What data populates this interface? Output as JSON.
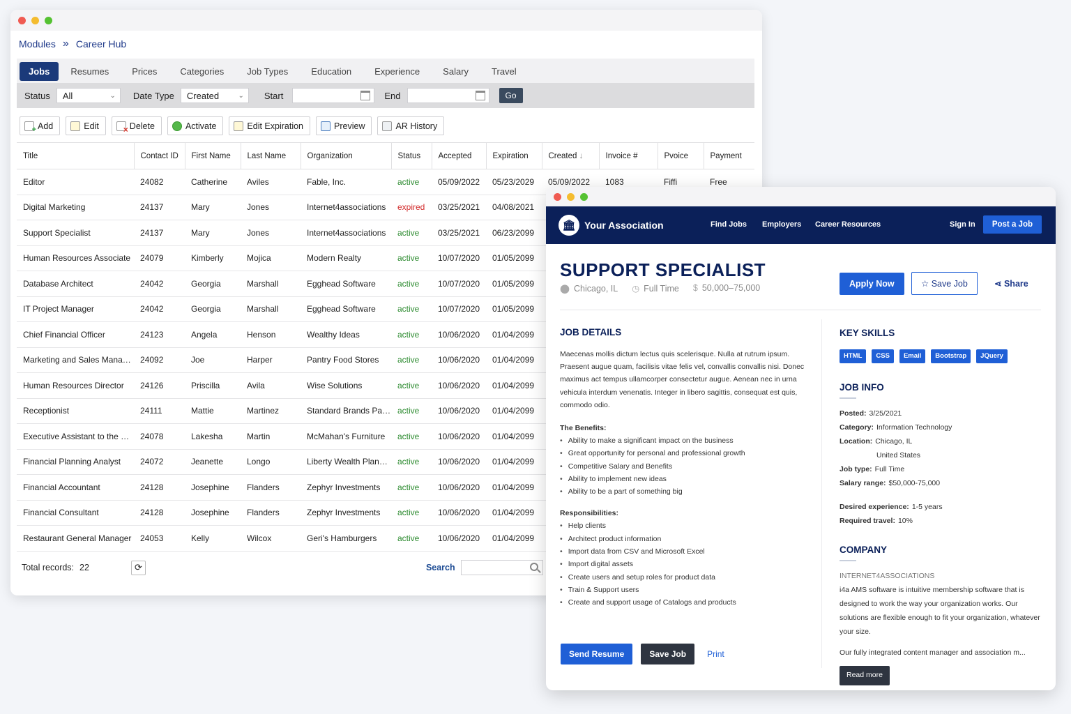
{
  "admin": {
    "breadcrumb": {
      "root": "Modules",
      "current": "Career Hub"
    },
    "tabs": [
      "Jobs",
      "Resumes",
      "Prices",
      "Categories",
      "Job Types",
      "Education",
      "Experience",
      "Salary",
      "Travel"
    ],
    "filters": {
      "status_label": "Status",
      "status_value": "All",
      "date_type_label": "Date Type",
      "date_type_value": "Created",
      "start_label": "Start",
      "end_label": "End",
      "go": "Go"
    },
    "toolbar": [
      "Add",
      "Edit",
      "Delete",
      "Activate",
      "Edit Expiration",
      "Preview",
      "AR History"
    ],
    "columns": [
      "Title",
      "Contact ID",
      "First Name",
      "Last Name",
      "Organization",
      "Status",
      "Accepted",
      "Expiration",
      "Created",
      "Invoice #",
      "Pvoice",
      "Payment"
    ],
    "rows": [
      [
        "Editor",
        "24082",
        "Catherine",
        "Aviles",
        "Fable, Inc.",
        "active",
        "05/09/2022",
        "05/23/2029",
        "05/09/2022",
        "1083",
        "Fiffi",
        "Free"
      ],
      [
        "Digital Marketing",
        "24137",
        "Mary",
        "Jones",
        "Internet4associations",
        "expired",
        "03/25/2021",
        "04/08/2021",
        "",
        "",
        "",
        ""
      ],
      [
        "Support Specialist",
        "24137",
        "Mary",
        "Jones",
        "Internet4associations",
        "active",
        "03/25/2021",
        "06/23/2099",
        "",
        "",
        "",
        ""
      ],
      [
        "Human Resources Associate",
        "24079",
        "Kimberly",
        "Mojica",
        "Modern Realty",
        "active",
        "10/07/2020",
        "01/05/2099",
        "",
        "",
        "",
        ""
      ],
      [
        "Database Architect",
        "24042",
        "Georgia",
        "Marshall",
        "Egghead Software",
        "active",
        "10/07/2020",
        "01/05/2099",
        "",
        "",
        "",
        ""
      ],
      [
        "IT Project Manager",
        "24042",
        "Georgia",
        "Marshall",
        "Egghead Software",
        "active",
        "10/07/2020",
        "01/05/2099",
        "",
        "",
        "",
        ""
      ],
      [
        "Chief Financial Officer",
        "24123",
        "Angela",
        "Henson",
        "Wealthy Ideas",
        "active",
        "10/06/2020",
        "01/04/2099",
        "",
        "",
        "",
        ""
      ],
      [
        "Marketing and Sales Manager",
        "24092",
        "Joe",
        "Harper",
        "Pantry Food Stores",
        "active",
        "10/06/2020",
        "01/04/2099",
        "",
        "",
        "",
        ""
      ],
      [
        "Human Resources Director",
        "24126",
        "Priscilla",
        "Avila",
        "Wise Solutions",
        "active",
        "10/06/2020",
        "01/04/2099",
        "",
        "",
        "",
        ""
      ],
      [
        "Receptionist",
        "24111",
        "Mattie",
        "Martinez",
        "Standard Brands Paint ...",
        "active",
        "10/06/2020",
        "01/04/2099",
        "",
        "",
        "",
        ""
      ],
      [
        "Executive Assistant to the Pre...",
        "24078",
        "Lakesha",
        "Martin",
        "McMahan's Furniture",
        "active",
        "10/06/2020",
        "01/04/2099",
        "",
        "",
        "",
        ""
      ],
      [
        "Financial Planning Analyst",
        "24072",
        "Jeanette",
        "Longo",
        "Liberty Wealth Planners",
        "active",
        "10/06/2020",
        "01/04/2099",
        "",
        "",
        "",
        ""
      ],
      [
        "Financial Accountant",
        "24128",
        "Josephine",
        "Flanders",
        "Zephyr Investments",
        "active",
        "10/06/2020",
        "01/04/2099",
        "",
        "",
        "",
        ""
      ],
      [
        "Financial Consultant",
        "24128",
        "Josephine",
        "Flanders",
        "Zephyr Investments",
        "active",
        "10/06/2020",
        "01/04/2099",
        "",
        "",
        "",
        ""
      ],
      [
        "Restaurant General Manager",
        "24053",
        "Kelly",
        "Wilcox",
        "Geri's Hamburgers",
        "active",
        "10/06/2020",
        "01/04/2099",
        "",
        "",
        "",
        ""
      ]
    ],
    "footer": {
      "total_label": "Total records:",
      "total_value": "22",
      "search_label": "Search"
    }
  },
  "job": {
    "nav": {
      "brand": "Your Association",
      "links": [
        "Find Jobs",
        "Employers",
        "Career Resources"
      ],
      "sign_in": "Sign In",
      "post": "Post a Job"
    },
    "title": "SUPPORT SPECIALIST",
    "location": "Chicago, IL",
    "type": "Full Time",
    "salary": "50,000–75,000",
    "apply": "Apply Now",
    "save": "Save Job",
    "share": "Share",
    "details_heading": "JOB DETAILS",
    "description": "Maecenas mollis dictum lectus quis scelerisque. Nulla at rutrum ipsum. Praesent augue quam, facilisis vitae felis vel, convallis convallis nisi. Donec maximus act tempus ullamcorper consectetur augue. Aenean nec in urna vehicula interdum venenatis. Integer in libero sagittis, consequat est quis, commodo odio.",
    "benefits_heading": "The Benefits:",
    "benefits": [
      "Ability to make a significant impact on the business",
      "Great opportunity for personal and professional growth",
      "Competitive Salary and Benefits",
      "Ability to implement new ideas",
      "Ability to be a part of something big"
    ],
    "resp_heading": "Responsibilities:",
    "responsibilities": [
      "Help clients",
      "Architect product information",
      "Import data from CSV and Microsoft Excel",
      "Import digital assets",
      "Create users and setup roles for product data",
      "Train & Support users",
      "Create and support usage of Catalogs and products"
    ],
    "skills_heading": "KEY SKILLS",
    "skills": [
      "HTML",
      "CSS",
      "Email",
      "Bootstrap",
      "JQuery"
    ],
    "info_heading": "JOB INFO",
    "info": {
      "posted_label": "Posted:",
      "posted": "3/25/2021",
      "category_label": "Category:",
      "category": "Information Technology",
      "location_label": "Location:",
      "location_city": "Chicago, IL",
      "location_country": "United States",
      "type_label": "Job type:",
      "type": "Full Time",
      "salary_label": "Salary range:",
      "salary": "$50,000-75,000",
      "experience_label": "Desired experience:",
      "experience": "1-5 years",
      "travel_label": "Required travel:",
      "travel": "10%"
    },
    "company_heading": "COMPANY",
    "company_name": "INTERNET4ASSOCIATIONS",
    "company_p1": "i4a AMS software is intuitive membership software that is designed to work the way your organization works. Our solutions are flexible enough to fit your organization, whatever your size.",
    "company_p2": "Our fully integrated content manager and association m...",
    "read_more": "Read more",
    "send_resume": "Send Resume",
    "save_job": "Save Job",
    "print": "Print"
  }
}
